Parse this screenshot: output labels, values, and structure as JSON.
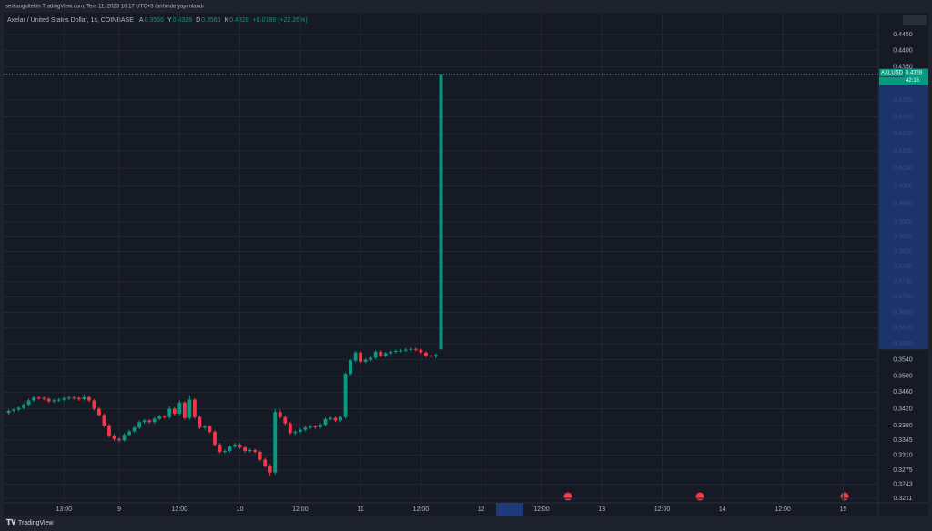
{
  "header": {
    "published": "serkangultekin TradingView.com, Tem 11, 2023 16:17 UTC+3 tarihinde yayımlandı"
  },
  "legend": {
    "symbol": "Axelar / United States Dollar, 1s, COINBASE",
    "fields": [
      {
        "label": "A",
        "value": "0.3566"
      },
      {
        "label": "Y",
        "value": "0.4328"
      },
      {
        "label": "D",
        "value": "0.3566"
      },
      {
        "label": "K",
        "value": "0.4328"
      }
    ],
    "change": "+0.0788 (+22.26%)"
  },
  "price_label": {
    "ticker": "AXLUSD",
    "price": "0.4328",
    "countdown": "42:16"
  },
  "footer": {
    "brand": "TradingView"
  },
  "chart_data": {
    "type": "candlestick",
    "log_scale": true,
    "grid": true,
    "up_color": "#089981",
    "down_color": "#f23645",
    "xlim": [
      1,
      175
    ],
    "ylim": [
      0.3201,
      0.4519
    ],
    "xticks": [
      {
        "value": 13,
        "label": "13:00"
      },
      {
        "value": 24,
        "label": "9"
      },
      {
        "value": 36,
        "label": "12:00"
      },
      {
        "value": 48,
        "label": "10"
      },
      {
        "value": 60,
        "label": "12:00"
      },
      {
        "value": 72,
        "label": "11"
      },
      {
        "value": 84,
        "label": "12:00"
      },
      {
        "value": 96,
        "label": "12"
      },
      {
        "value": 108,
        "label": "12:00"
      },
      {
        "value": 120,
        "label": "13"
      },
      {
        "value": 132,
        "label": "12:00"
      },
      {
        "value": 144,
        "label": "14"
      },
      {
        "value": 156,
        "label": "12:00"
      },
      {
        "value": 168,
        "label": "15"
      }
    ],
    "yticks": [
      {
        "value": 0.445,
        "label": "0.4450"
      },
      {
        "value": 0.44,
        "label": "0.4400"
      },
      {
        "value": 0.435,
        "label": "0.4350"
      },
      {
        "value": 0.425,
        "label": "0.4250"
      },
      {
        "value": 0.42,
        "label": "0.4200"
      },
      {
        "value": 0.415,
        "label": "0.4150"
      },
      {
        "value": 0.41,
        "label": "0.4100"
      },
      {
        "value": 0.405,
        "label": "0.4050"
      },
      {
        "value": 0.4,
        "label": "0.4000"
      },
      {
        "value": 0.395,
        "label": "0.3950"
      },
      {
        "value": 0.39,
        "label": "0.3900"
      },
      {
        "value": 0.386,
        "label": "0.3860"
      },
      {
        "value": 0.382,
        "label": "0.3820"
      },
      {
        "value": 0.378,
        "label": "0.3780"
      },
      {
        "value": 0.374,
        "label": "0.3740"
      },
      {
        "value": 0.37,
        "label": "0.3700"
      },
      {
        "value": 0.366,
        "label": "0.3660"
      },
      {
        "value": 0.362,
        "label": "0.3620"
      },
      {
        "value": 0.358,
        "label": "0.3580"
      },
      {
        "value": 0.354,
        "label": "0.3540"
      },
      {
        "value": 0.35,
        "label": "0.3500"
      },
      {
        "value": 0.346,
        "label": "0.3460"
      },
      {
        "value": 0.342,
        "label": "0.3420"
      },
      {
        "value": 0.338,
        "label": "0.3380"
      },
      0.3345,
      {
        "value": 0.331,
        "label": "0.3310"
      },
      0.3275,
      0.3243,
      0.3211
    ],
    "x": [
      2,
      3,
      4,
      5,
      6,
      7,
      8,
      9,
      10,
      11,
      12,
      13,
      14,
      15,
      16,
      17,
      18,
      19,
      20,
      21,
      22,
      23,
      24,
      25,
      26,
      27,
      28,
      29,
      30,
      31,
      32,
      33,
      34,
      35,
      36,
      37,
      38,
      39,
      40,
      41,
      42,
      43,
      44,
      45,
      46,
      47,
      48,
      49,
      50,
      51,
      52,
      53,
      54,
      55,
      56,
      57,
      58,
      59,
      60,
      61,
      62,
      63,
      64,
      65,
      66,
      67,
      68,
      69,
      70,
      71,
      72,
      73,
      74,
      75,
      76,
      77,
      78,
      79,
      80,
      81,
      82,
      83,
      84,
      85,
      86,
      87,
      88
    ],
    "ohlc": [
      [
        0.341,
        0.3418,
        0.3406,
        0.3415
      ],
      [
        0.3415,
        0.3421,
        0.3411,
        0.3418
      ],
      [
        0.3418,
        0.3426,
        0.3414,
        0.3422
      ],
      [
        0.3422,
        0.3434,
        0.3418,
        0.343
      ],
      [
        0.343,
        0.3444,
        0.3426,
        0.344
      ],
      [
        0.344,
        0.3451,
        0.3436,
        0.3447
      ],
      [
        0.3447,
        0.345,
        0.3442,
        0.3446
      ],
      [
        0.3446,
        0.3449,
        0.344,
        0.3444
      ],
      [
        0.3444,
        0.3447,
        0.3434,
        0.3438
      ],
      [
        0.3438,
        0.3444,
        0.3434,
        0.344
      ],
      [
        0.344,
        0.3446,
        0.3436,
        0.3442
      ],
      [
        0.3442,
        0.3449,
        0.3438,
        0.3445
      ],
      [
        0.3445,
        0.3451,
        0.3441,
        0.3447
      ],
      [
        0.3447,
        0.345,
        0.3442,
        0.3446
      ],
      [
        0.3446,
        0.3449,
        0.3439,
        0.3443
      ],
      [
        0.3443,
        0.3455,
        0.344,
        0.3448
      ],
      [
        0.3448,
        0.3451,
        0.3436,
        0.344
      ],
      [
        0.344,
        0.3443,
        0.3416,
        0.342
      ],
      [
        0.342,
        0.3424,
        0.3401,
        0.3405
      ],
      [
        0.3405,
        0.3409,
        0.3376,
        0.338
      ],
      [
        0.338,
        0.3384,
        0.3351,
        0.3355
      ],
      [
        0.3355,
        0.336,
        0.3344,
        0.3348
      ],
      [
        0.3348,
        0.3352,
        0.334,
        0.3345
      ],
      [
        0.3345,
        0.3362,
        0.3342,
        0.3358
      ],
      [
        0.3358,
        0.337,
        0.3354,
        0.3366
      ],
      [
        0.3366,
        0.3379,
        0.3362,
        0.3375
      ],
      [
        0.3375,
        0.3392,
        0.3371,
        0.3388
      ],
      [
        0.3388,
        0.3396,
        0.3384,
        0.3392
      ],
      [
        0.3392,
        0.3395,
        0.3384,
        0.3388
      ],
      [
        0.3388,
        0.34,
        0.3384,
        0.3396
      ],
      [
        0.3396,
        0.3406,
        0.3392,
        0.3402
      ],
      [
        0.3402,
        0.3405,
        0.3396,
        0.34
      ],
      [
        0.34,
        0.3426,
        0.3396,
        0.342
      ],
      [
        0.342,
        0.3424,
        0.3404,
        0.3408
      ],
      [
        0.3408,
        0.344,
        0.3404,
        0.3435
      ],
      [
        0.3435,
        0.3438,
        0.3394,
        0.3398
      ],
      [
        0.3398,
        0.3452,
        0.3394,
        0.3442
      ],
      [
        0.3442,
        0.3446,
        0.3396,
        0.34
      ],
      [
        0.34,
        0.3404,
        0.3371,
        0.3375
      ],
      [
        0.3375,
        0.3382,
        0.337,
        0.3378
      ],
      [
        0.3378,
        0.3381,
        0.3361,
        0.3365
      ],
      [
        0.3365,
        0.3369,
        0.3331,
        0.3335
      ],
      [
        0.3335,
        0.3339,
        0.3314,
        0.3318
      ],
      [
        0.3318,
        0.3324,
        0.3314,
        0.332
      ],
      [
        0.332,
        0.3334,
        0.3316,
        0.333
      ],
      [
        0.333,
        0.3339,
        0.3326,
        0.3335
      ],
      [
        0.3335,
        0.3338,
        0.3324,
        0.3328
      ],
      [
        0.3328,
        0.3331,
        0.3316,
        0.332
      ],
      [
        0.332,
        0.3326,
        0.3316,
        0.3322
      ],
      [
        0.3322,
        0.3325,
        0.3314,
        0.3318
      ],
      [
        0.3318,
        0.3321,
        0.3296,
        0.33
      ],
      [
        0.33,
        0.3304,
        0.3281,
        0.3285
      ],
      [
        0.3285,
        0.3289,
        0.3262,
        0.327
      ],
      [
        0.327,
        0.342,
        0.3265,
        0.3412
      ],
      [
        0.3412,
        0.3418,
        0.3396,
        0.34
      ],
      [
        0.34,
        0.3404,
        0.3381,
        0.3385
      ],
      [
        0.3385,
        0.3389,
        0.3358,
        0.3362
      ],
      [
        0.3362,
        0.3369,
        0.3358,
        0.3365
      ],
      [
        0.3365,
        0.3374,
        0.3361,
        0.337
      ],
      [
        0.337,
        0.3379,
        0.3366,
        0.3375
      ],
      [
        0.3375,
        0.3382,
        0.3371,
        0.3378
      ],
      [
        0.3378,
        0.3381,
        0.3372,
        0.3376
      ],
      [
        0.3376,
        0.3386,
        0.3372,
        0.3382
      ],
      [
        0.3382,
        0.3399,
        0.3378,
        0.3395
      ],
      [
        0.3395,
        0.3402,
        0.3391,
        0.3398
      ],
      [
        0.3398,
        0.3401,
        0.3388,
        0.3392
      ],
      [
        0.3392,
        0.3404,
        0.3388,
        0.34
      ],
      [
        0.34,
        0.3509,
        0.3396,
        0.3505
      ],
      [
        0.3505,
        0.3542,
        0.3501,
        0.3538
      ],
      [
        0.3538,
        0.3562,
        0.3534,
        0.3558
      ],
      [
        0.3558,
        0.3562,
        0.3531,
        0.3535
      ],
      [
        0.3535,
        0.3544,
        0.3531,
        0.354
      ],
      [
        0.354,
        0.3549,
        0.3536,
        0.3545
      ],
      [
        0.3545,
        0.3564,
        0.3541,
        0.356
      ],
      [
        0.356,
        0.3564,
        0.3546,
        0.355
      ],
      [
        0.355,
        0.356,
        0.3546,
        0.3556
      ],
      [
        0.3556,
        0.3564,
        0.3552,
        0.356
      ],
      [
        0.356,
        0.3566,
        0.3556,
        0.3562
      ],
      [
        0.3562,
        0.3567,
        0.3558,
        0.3563
      ],
      [
        0.3563,
        0.3569,
        0.3559,
        0.3565
      ],
      [
        0.3565,
        0.3571,
        0.3561,
        0.3567
      ],
      [
        0.3567,
        0.357,
        0.3561,
        0.3565
      ],
      [
        0.3565,
        0.3568,
        0.3554,
        0.3558
      ],
      [
        0.3558,
        0.3561,
        0.3546,
        0.355
      ],
      [
        0.355,
        0.3553,
        0.3544,
        0.3548
      ],
      [
        0.3548,
        0.3556,
        0.3544,
        0.3552
      ],
      [
        0.3566,
        0.4328,
        0.3566,
        0.4328
      ]
    ]
  }
}
